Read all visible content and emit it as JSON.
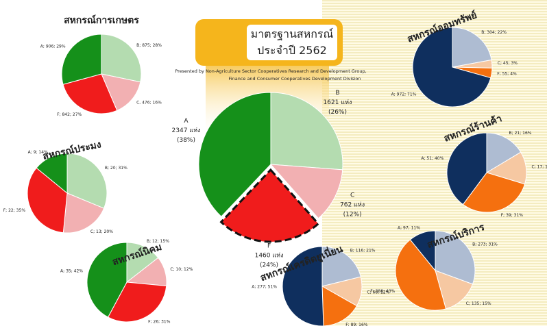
{
  "chart_data": [
    {
      "type": "pie",
      "title": "มาตรฐานสหกรณ์ ประจำปี 2562",
      "subtitle": "Presented by Non-Agriculture Sector Cooperatives Research and Development Group, Finance and Consumer Cooperatives Development Division",
      "categories": [
        "A",
        "B",
        "C",
        "F"
      ],
      "values": [
        2347,
        1621,
        762,
        1460
      ],
      "value_labels": [
        "2347 แห่ง",
        "1621 แห่ง",
        "762 แห่ง",
        "1460 แห่ง"
      ],
      "percent_labels": [
        "(38%)",
        "(26%)",
        "(12%)",
        "(24%)"
      ],
      "colors": [
        "#15901a",
        "#b4dcb0",
        "#f2b0b2",
        "#f01c1c"
      ]
    },
    {
      "type": "pie",
      "title": "สหกรณ์การเกษตร",
      "values": [
        906,
        875,
        476,
        842
      ],
      "value_labels": [
        "A; 906; 29%",
        "B; 875; 28%",
        "C, 476; 16%",
        "F; 842; 27%"
      ],
      "colors": [
        "#15901a",
        "#b4dcb0",
        "#f2b0b2",
        "#f01c1c"
      ]
    },
    {
      "type": "pie",
      "title": "สหกรณ์ประมง",
      "values": [
        9,
        20,
        13,
        22
      ],
      "value_labels": [
        "A; 9; 14%",
        "B; 20; 31%",
        "C; 13; 20%",
        "F; 22; 35%"
      ],
      "colors": [
        "#15901a",
        "#b4dcb0",
        "#f2b0b2",
        "#f01c1c"
      ]
    },
    {
      "type": "pie",
      "title": "สหกรณ์นิคม",
      "values": [
        35,
        12,
        10,
        26
      ],
      "value_labels": [
        "A; 35; 42%",
        "B; 12; 15%",
        "C; 10; 12%",
        "F; 26; 31%"
      ],
      "colors": [
        "#15901a",
        "#b4dcb0",
        "#f2b0b2",
        "#f01c1c"
      ]
    },
    {
      "type": "pie",
      "title": "สหกรณ์ออมทรัพย์",
      "values": [
        972,
        304,
        45,
        55
      ],
      "value_labels": [
        "A; 972; 71%",
        "B; 304; 22%",
        "C; 45; 3%",
        "F; 55; 4%"
      ],
      "colors": [
        "#0f2f5e",
        "#aebcd2",
        "#f6c8a2",
        "#f5700f"
      ]
    },
    {
      "type": "pie",
      "title": "สหกรณ์ร้านค้า",
      "values": [
        51,
        21,
        17,
        39
      ],
      "value_labels": [
        "A; 51; 40%",
        "B; 21; 16%",
        "C; 17; 13%",
        "F; 39; 31%"
      ],
      "colors": [
        "#0f2f5e",
        "#aebcd2",
        "#f6c8a2",
        "#f5700f"
      ]
    },
    {
      "type": "pie",
      "title": "สหกรณ์บริการ",
      "values": [
        97,
        273,
        135,
        388
      ],
      "value_labels": [
        "A; 97; 11%",
        "B; 273; 31%",
        "C; 135; 15%",
        "F; 388; 43%"
      ],
      "colors": [
        "#0f2f5e",
        "#aebcd2",
        "#f6c8a2",
        "#f5700f"
      ]
    },
    {
      "type": "pie",
      "title": "สหกรณ์เครดิตยูเนี่ยน",
      "values": [
        277,
        116,
        66,
        89
      ],
      "value_labels": [
        "A; 277; 51%",
        "B; 116; 21%",
        "C; 66; 12%",
        "F; 89; 16%"
      ],
      "colors": [
        "#0f2f5e",
        "#aebcd2",
        "#f6c8a2",
        "#f5700f"
      ]
    }
  ]
}
